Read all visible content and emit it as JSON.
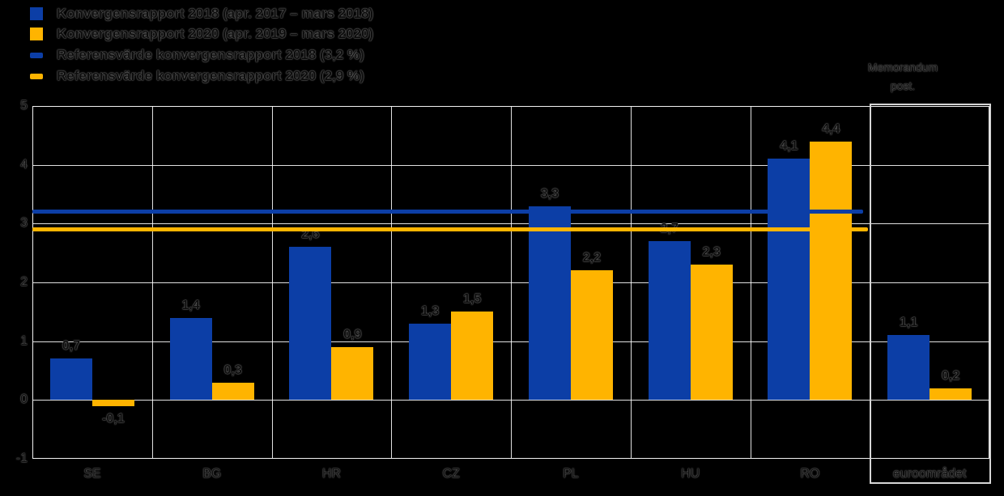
{
  "chart_data": {
    "type": "bar",
    "title": "",
    "background": "#000000",
    "gridline_color": "#ffffff",
    "grid": true,
    "legend_position": "top-left",
    "ylim": [
      -1,
      5
    ],
    "yticks": [
      5,
      4,
      3,
      2,
      1,
      0,
      -1
    ],
    "categories": [
      "SE",
      "BG",
      "HR",
      "CZ",
      "PL",
      "HU",
      "RO",
      "euroområdet"
    ],
    "series": [
      {
        "key": "kr2018",
        "name": "Konvergensrapport 2018 (apr. 2017 – mars 2018)",
        "color": "#0c3ea6",
        "values": [
          0.7,
          1.4,
          2.6,
          1.3,
          3.3,
          2.7,
          4.1,
          1.1
        ],
        "labels": [
          "0,7",
          "1,4",
          "2,6",
          "1,3",
          "3,3",
          "2,7",
          "4,1",
          "1,1"
        ]
      },
      {
        "key": "kr2020",
        "name": "Konvergensrapport 2020 (apr. 2019 – mars 2020)",
        "color": "#ffb400",
        "values": [
          -0.1,
          0.3,
          0.9,
          1.5,
          2.2,
          2.3,
          4.4,
          0.2
        ],
        "labels": [
          "-0,1",
          "0,3",
          "0,9",
          "1,5",
          "2,2",
          "2,3",
          "4,4",
          "0,2"
        ]
      }
    ],
    "reference_lines": [
      {
        "key": "ref2018",
        "label": "Referensvärde konvergensrapport 2018 (3,2 %)",
        "value": 3.2,
        "color": "#0c3ea6"
      },
      {
        "key": "ref2020",
        "label": "Referensvärde konvergensrapport 2020 (2,9 %)",
        "value": 2.9,
        "color": "#ffb400"
      }
    ],
    "memo_label_lines": [
      "Memorandum",
      "post."
    ],
    "memo_category_index": 7
  }
}
